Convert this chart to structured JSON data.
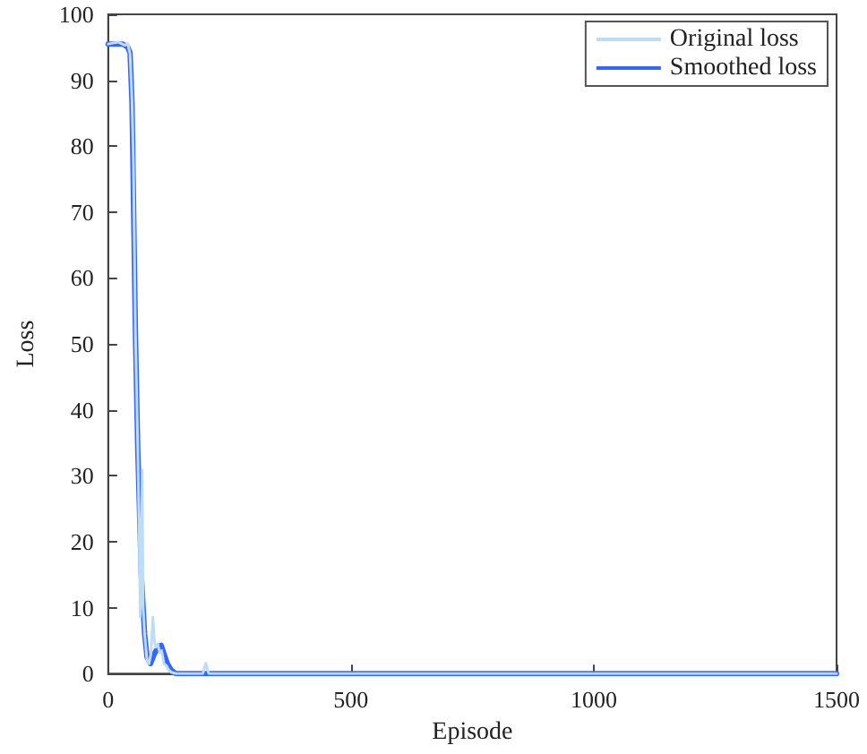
{
  "chart_data": {
    "type": "line",
    "xlabel": "Episode",
    "ylabel": "Loss",
    "xlim": [
      0,
      1500
    ],
    "xticks": [
      0,
      500,
      1000,
      1500
    ],
    "ylim": [
      0,
      100
    ],
    "yticks": [
      0,
      10,
      20,
      30,
      40,
      50,
      60,
      70,
      80,
      90,
      100
    ],
    "grid": false,
    "legend": "top right",
    "marker": "none",
    "line_style": "solid",
    "series": [
      {
        "name": "Original loss",
        "color": "#bfdcf7",
        "x": [
          0,
          20,
          35,
          40,
          45,
          49,
          52,
          56,
          61,
          64,
          66,
          68,
          70,
          72,
          75,
          80,
          84,
          88,
          92,
          95,
          98,
          102,
          106,
          110,
          115,
          120,
          125,
          130,
          140,
          160,
          195,
          201,
          207,
          230,
          1500
        ],
        "values": [
          95.5,
          95.8,
          95.3,
          95.6,
          94,
          87,
          77,
          52,
          34,
          20,
          8.6,
          18,
          30.9,
          10,
          6,
          2,
          1.5,
          3,
          8.6,
          5,
          4,
          4.5,
          3.2,
          3.5,
          1.5,
          1.2,
          0.5,
          0.2,
          0,
          0,
          0,
          1.6,
          0,
          0,
          0
        ]
      },
      {
        "name": "Smoothed loss",
        "color": "#3366ff",
        "x": [
          0,
          30,
          40,
          45,
          49,
          51,
          56,
          61,
          68,
          75,
          80,
          87,
          95,
          103,
          109,
          115,
          122,
          130,
          139,
          200,
          1500
        ],
        "values": [
          95.5,
          95.5,
          95,
          94.2,
          86.7,
          77.4,
          52,
          33.7,
          15.3,
          6,
          2.5,
          1.5,
          3,
          4,
          4.3,
          3,
          1.5,
          0.5,
          0,
          0,
          0
        ]
      }
    ]
  }
}
